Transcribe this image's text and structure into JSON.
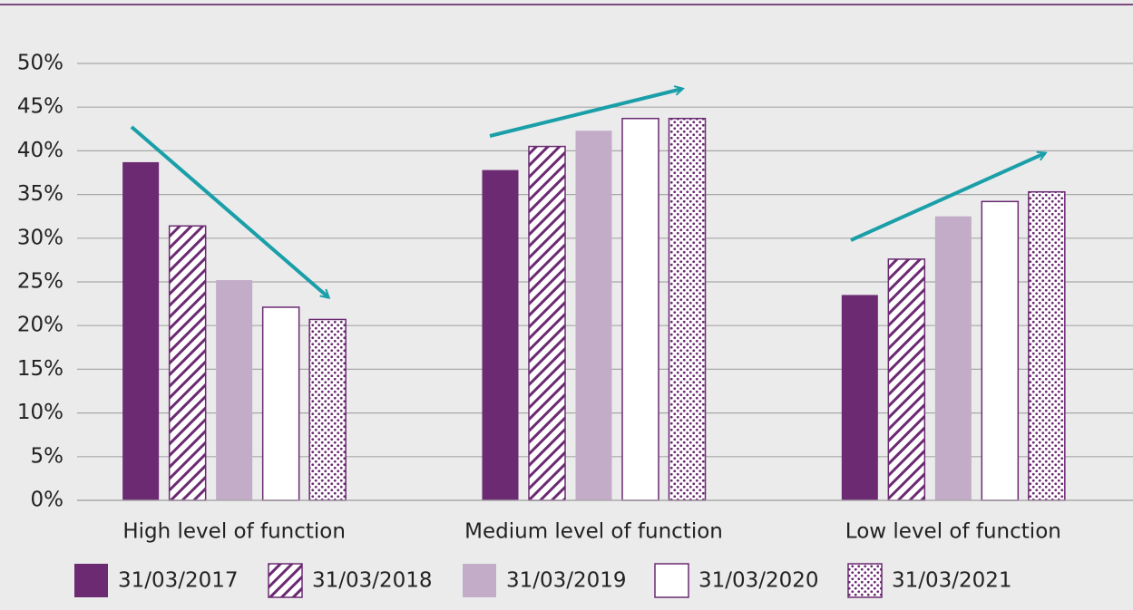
{
  "chart_data": {
    "type": "bar",
    "categories": [
      "High level of function",
      "Medium level of function",
      "Low level of function"
    ],
    "series": [
      {
        "name": "31/03/2017",
        "color": "#6b2a72",
        "pattern": "solid",
        "values": [
          38.7,
          37.8,
          23.5
        ]
      },
      {
        "name": "31/03/2018",
        "color": "#6b2a72",
        "pattern": "hatch",
        "values": [
          31.4,
          40.5,
          27.6
        ]
      },
      {
        "name": "31/03/2019",
        "color": "#c2acc8",
        "pattern": "solid",
        "values": [
          25.2,
          42.3,
          32.5
        ]
      },
      {
        "name": "31/03/2020",
        "color": "#6b2a72",
        "pattern": "outline",
        "values": [
          22.1,
          43.7,
          34.2
        ]
      },
      {
        "name": "31/03/2021",
        "color": "#6b2a72",
        "pattern": "dots",
        "values": [
          20.7,
          43.7,
          35.3
        ]
      }
    ],
    "ylim": [
      0,
      50
    ],
    "yticks": [
      {
        "value": 0,
        "label": "0%"
      },
      {
        "value": 5,
        "label": "5%"
      },
      {
        "value": 10,
        "label": "10%"
      },
      {
        "value": 15,
        "label": "15%"
      },
      {
        "value": 20,
        "label": "20%"
      },
      {
        "value": 25,
        "label": "25%"
      },
      {
        "value": 30,
        "label": "30%"
      },
      {
        "value": 35,
        "label": "35%"
      },
      {
        "value": 40,
        "label": "40%"
      },
      {
        "value": 45,
        "label": "45%"
      },
      {
        "value": 50,
        "label": "50%"
      }
    ],
    "grid": true
  }
}
